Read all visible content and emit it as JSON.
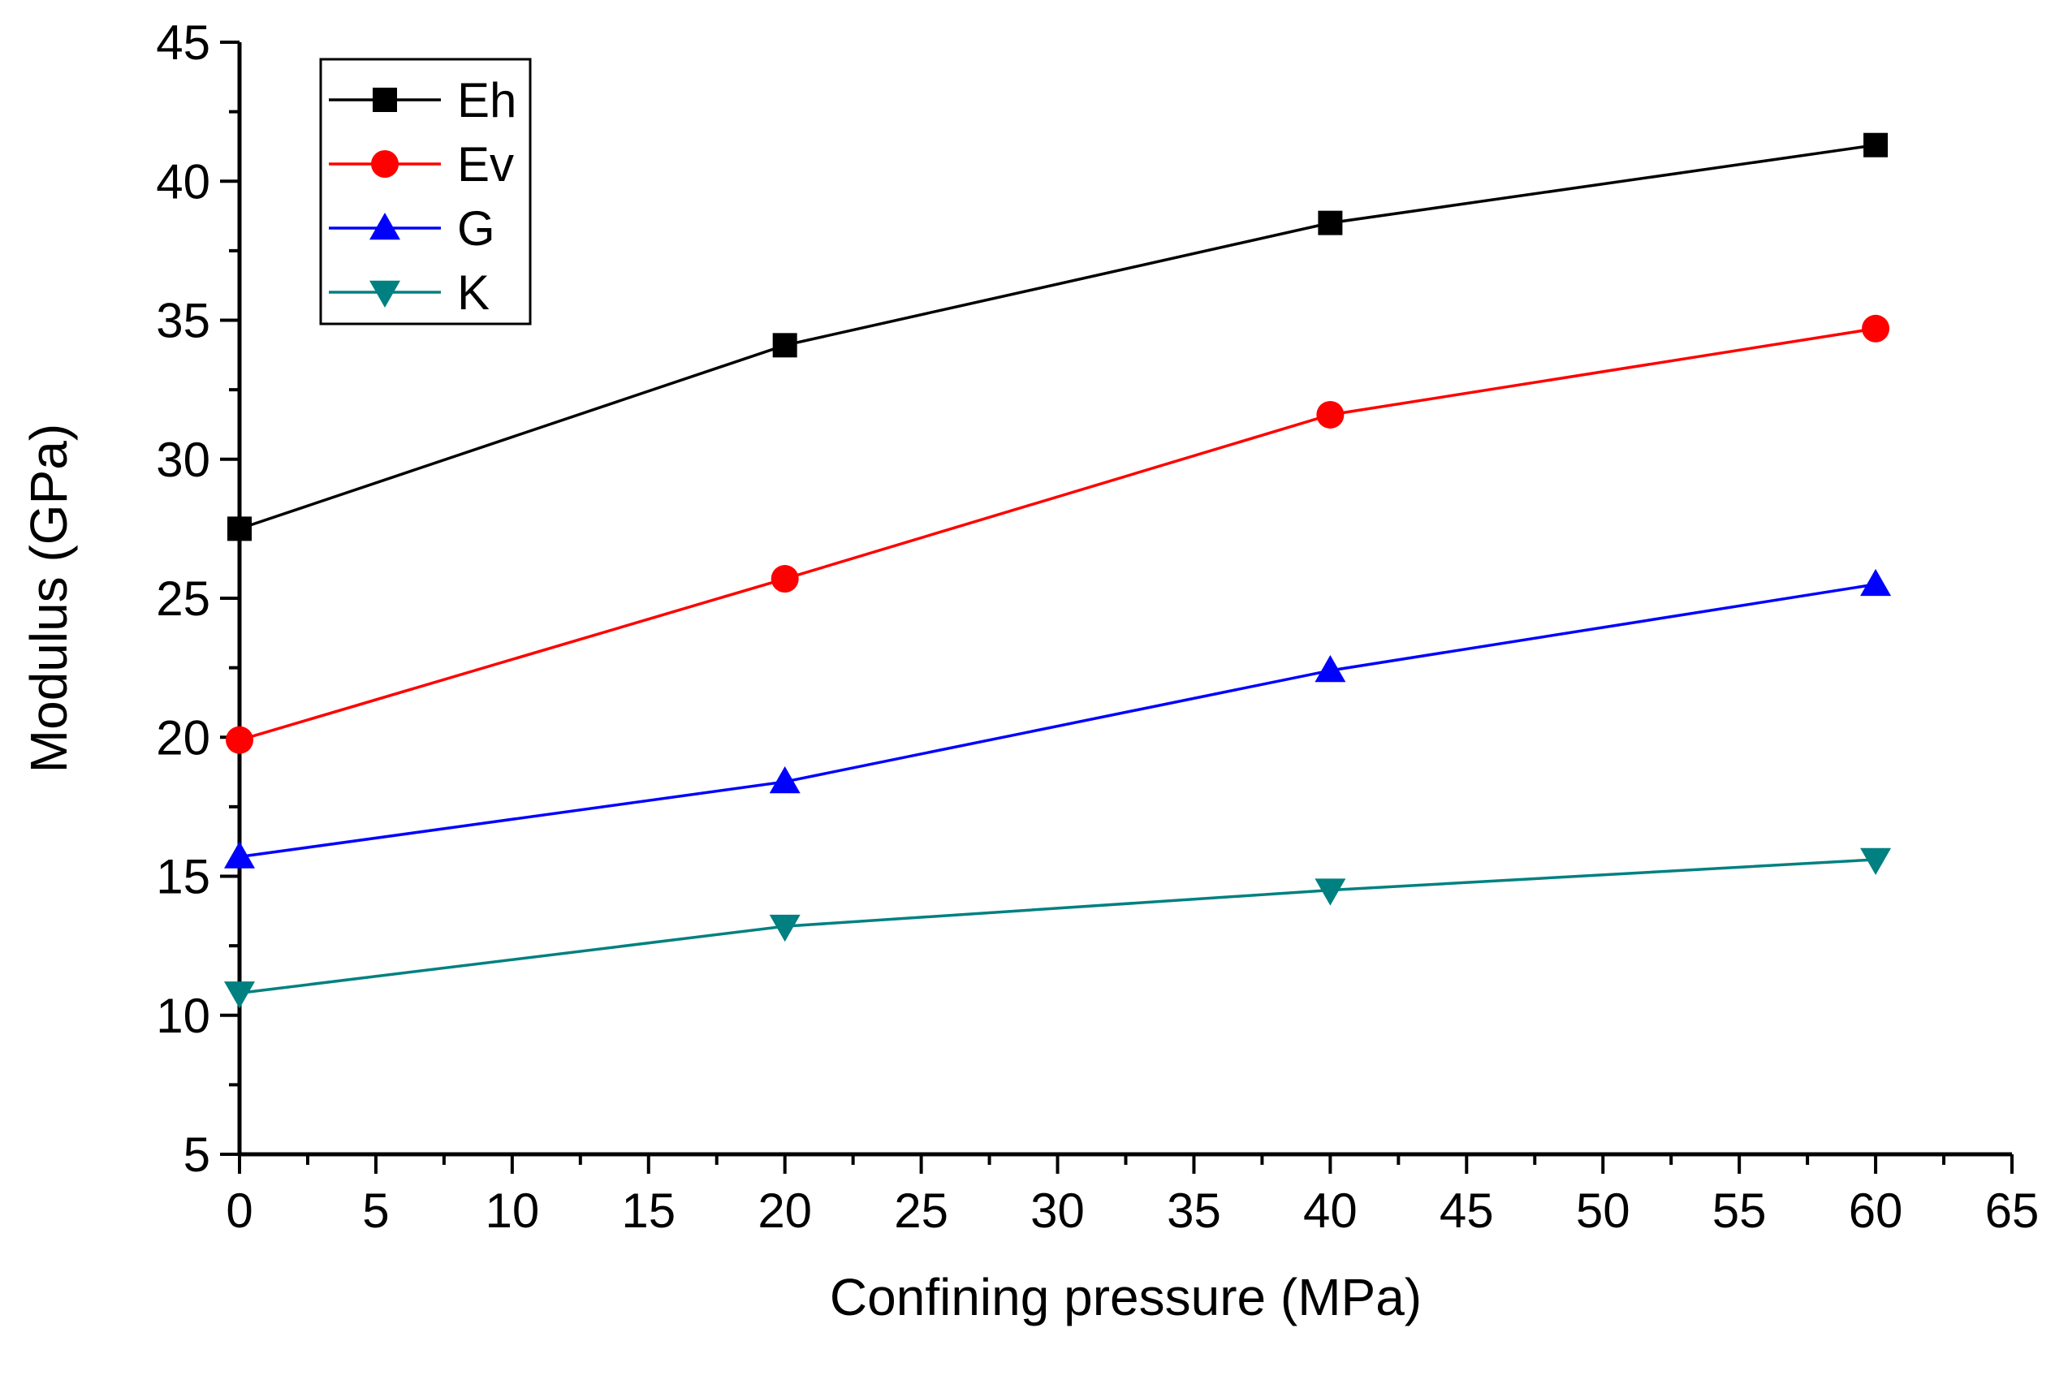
{
  "chart_data": {
    "type": "line",
    "title": "",
    "xlabel": "Confining pressure (MPa)",
    "ylabel": "Modulus (GPa)",
    "xlim": [
      0,
      65
    ],
    "ylim": [
      5,
      45
    ],
    "xticks": [
      0,
      5,
      10,
      15,
      20,
      25,
      30,
      35,
      40,
      45,
      50,
      55,
      60,
      65
    ],
    "xtick_labels": [
      "0",
      "5",
      "10",
      "15",
      "20",
      "25",
      "30",
      "35",
      "40",
      "45",
      "50",
      "55",
      "60",
      "65"
    ],
    "yticks": [
      5,
      10,
      15,
      20,
      25,
      30,
      35,
      40,
      45
    ],
    "ytick_labels": [
      "5",
      "10",
      "15",
      "20",
      "25",
      "30",
      "35",
      "40",
      "45"
    ],
    "grid": false,
    "legend_position": "top-left",
    "x": [
      0,
      20,
      40,
      60
    ],
    "series": [
      {
        "name": "Eh",
        "color": "#000000",
        "marker": "square",
        "values": [
          27.5,
          34.1,
          38.5,
          41.3
        ]
      },
      {
        "name": "Ev",
        "color": "#ff0000",
        "marker": "circle",
        "values": [
          19.9,
          25.7,
          31.6,
          34.7
        ]
      },
      {
        "name": "G",
        "color": "#0000ff",
        "marker": "triangle-up",
        "values": [
          15.7,
          18.4,
          22.4,
          25.5
        ]
      },
      {
        "name": "K",
        "color": "#008080",
        "marker": "triangle-down",
        "values": [
          10.8,
          13.2,
          14.5,
          15.6
        ]
      }
    ]
  }
}
